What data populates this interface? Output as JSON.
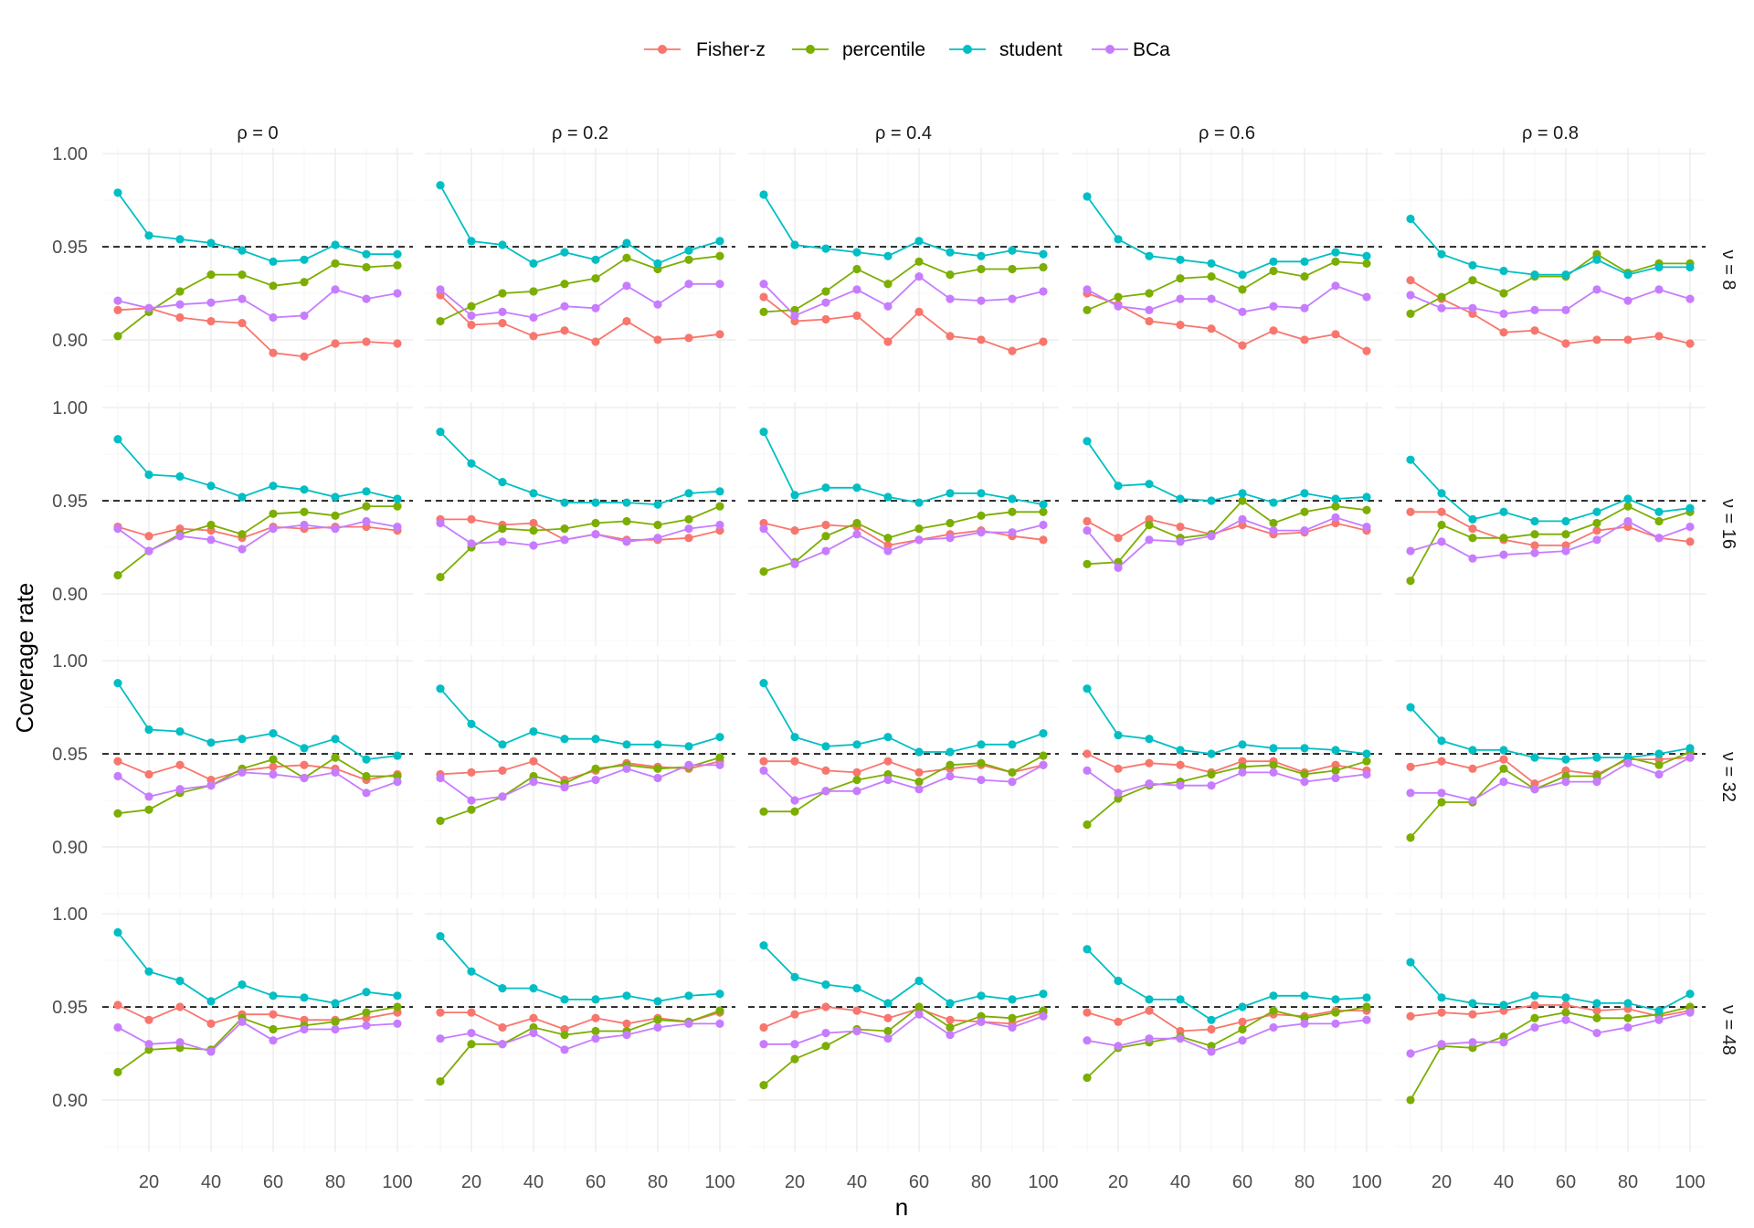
{
  "chart_data": {
    "type": "line",
    "xlabel": "n",
    "ylabel": "Coverage rate",
    "x": [
      10,
      20,
      30,
      40,
      50,
      60,
      70,
      80,
      90,
      100
    ],
    "xticks": [
      "20",
      "40",
      "60",
      "80",
      "100"
    ],
    "xtick_values": [
      20,
      40,
      60,
      80,
      100
    ],
    "xlim": [
      5,
      105
    ],
    "yticks": [
      "0.90",
      "0.95",
      "1.00"
    ],
    "ytick_values": [
      0.9,
      0.95,
      1.0
    ],
    "ylim": [
      0.872,
      1.003
    ],
    "reference_line": 0.95,
    "grid": true,
    "legend_position": "top",
    "legend": [
      {
        "name": "Fisher-z",
        "color": "#F8766D"
      },
      {
        "name": "percentile",
        "color": "#7CAE00"
      },
      {
        "name": "student",
        "color": "#00BFC4"
      },
      {
        "name": "BCa",
        "color": "#C77CFF"
      }
    ],
    "col_labels": [
      "ρ = 0",
      "ρ = 0.2",
      "ρ = 0.4",
      "ρ = 0.6",
      "ρ = 0.8"
    ],
    "row_labels": [
      "ν = 8",
      "ν = 16",
      "ν = 32",
      "ν = 48"
    ],
    "panels": [
      [
        {
          "Fisher-z": [
            0.916,
            0.917,
            0.912,
            0.91,
            0.909,
            0.893,
            0.891,
            0.898,
            0.899,
            0.898
          ],
          "percentile": [
            0.902,
            0.915,
            0.926,
            0.935,
            0.935,
            0.929,
            0.931,
            0.941,
            0.939,
            0.94
          ],
          "student": [
            0.979,
            0.956,
            0.954,
            0.952,
            0.948,
            0.942,
            0.943,
            0.951,
            0.946,
            0.946
          ],
          "BCa": [
            0.921,
            0.917,
            0.919,
            0.92,
            0.922,
            0.912,
            0.913,
            0.927,
            0.922,
            0.925
          ]
        },
        {
          "Fisher-z": [
            0.924,
            0.908,
            0.909,
            0.902,
            0.905,
            0.899,
            0.91,
            0.9,
            0.901,
            0.903
          ],
          "percentile": [
            0.91,
            0.918,
            0.925,
            0.926,
            0.93,
            0.933,
            0.944,
            0.938,
            0.943,
            0.945
          ],
          "student": [
            0.983,
            0.953,
            0.951,
            0.941,
            0.947,
            0.943,
            0.952,
            0.941,
            0.948,
            0.953
          ],
          "BCa": [
            0.927,
            0.913,
            0.915,
            0.912,
            0.918,
            0.917,
            0.929,
            0.919,
            0.93,
            0.93
          ]
        },
        {
          "Fisher-z": [
            0.923,
            0.91,
            0.911,
            0.913,
            0.899,
            0.915,
            0.902,
            0.9,
            0.894,
            0.899
          ],
          "percentile": [
            0.915,
            0.916,
            0.926,
            0.938,
            0.93,
            0.942,
            0.935,
            0.938,
            0.938,
            0.939
          ],
          "student": [
            0.978,
            0.951,
            0.949,
            0.947,
            0.945,
            0.953,
            0.947,
            0.945,
            0.948,
            0.946
          ],
          "BCa": [
            0.93,
            0.913,
            0.92,
            0.927,
            0.918,
            0.934,
            0.922,
            0.921,
            0.922,
            0.926
          ]
        },
        {
          "Fisher-z": [
            0.925,
            0.919,
            0.91,
            0.908,
            0.906,
            0.897,
            0.905,
            0.9,
            0.903,
            0.894
          ],
          "percentile": [
            0.916,
            0.923,
            0.925,
            0.933,
            0.934,
            0.927,
            0.937,
            0.934,
            0.942,
            0.941
          ],
          "student": [
            0.977,
            0.954,
            0.945,
            0.943,
            0.941,
            0.935,
            0.942,
            0.942,
            0.947,
            0.945
          ],
          "BCa": [
            0.927,
            0.918,
            0.916,
            0.922,
            0.922,
            0.915,
            0.918,
            0.917,
            0.929,
            0.923
          ]
        },
        {
          "Fisher-z": [
            0.932,
            0.922,
            0.914,
            0.904,
            0.905,
            0.898,
            0.9,
            0.9,
            0.902,
            0.898
          ],
          "percentile": [
            0.914,
            0.923,
            0.932,
            0.925,
            0.934,
            0.934,
            0.946,
            0.936,
            0.941,
            0.941
          ],
          "student": [
            0.965,
            0.946,
            0.94,
            0.937,
            0.935,
            0.935,
            0.943,
            0.935,
            0.939,
            0.939
          ],
          "BCa": [
            0.924,
            0.917,
            0.917,
            0.914,
            0.916,
            0.916,
            0.927,
            0.921,
            0.927,
            0.922
          ]
        }
      ],
      [
        {
          "Fisher-z": [
            0.936,
            0.931,
            0.935,
            0.934,
            0.93,
            0.936,
            0.935,
            0.936,
            0.936,
            0.934
          ],
          "percentile": [
            0.91,
            0.923,
            0.932,
            0.937,
            0.932,
            0.943,
            0.944,
            0.942,
            0.947,
            0.947
          ],
          "student": [
            0.983,
            0.964,
            0.963,
            0.958,
            0.952,
            0.958,
            0.956,
            0.952,
            0.955,
            0.951
          ],
          "BCa": [
            0.935,
            0.923,
            0.931,
            0.929,
            0.924,
            0.935,
            0.937,
            0.935,
            0.939,
            0.936
          ]
        },
        {
          "Fisher-z": [
            0.94,
            0.94,
            0.937,
            0.938,
            0.929,
            0.932,
            0.929,
            0.929,
            0.93,
            0.934
          ],
          "percentile": [
            0.909,
            0.925,
            0.935,
            0.934,
            0.935,
            0.938,
            0.939,
            0.937,
            0.94,
            0.947
          ],
          "student": [
            0.987,
            0.97,
            0.96,
            0.954,
            0.949,
            0.949,
            0.949,
            0.948,
            0.954,
            0.955
          ],
          "BCa": [
            0.938,
            0.927,
            0.928,
            0.926,
            0.929,
            0.932,
            0.928,
            0.93,
            0.935,
            0.937
          ]
        },
        {
          "Fisher-z": [
            0.938,
            0.934,
            0.937,
            0.936,
            0.926,
            0.929,
            0.932,
            0.934,
            0.931,
            0.929
          ],
          "percentile": [
            0.912,
            0.917,
            0.931,
            0.938,
            0.93,
            0.935,
            0.938,
            0.942,
            0.944,
            0.944
          ],
          "student": [
            0.987,
            0.953,
            0.957,
            0.957,
            0.952,
            0.949,
            0.954,
            0.954,
            0.951,
            0.948
          ],
          "BCa": [
            0.935,
            0.916,
            0.923,
            0.932,
            0.923,
            0.929,
            0.93,
            0.933,
            0.933,
            0.937
          ]
        },
        {
          "Fisher-z": [
            0.939,
            0.93,
            0.94,
            0.936,
            0.932,
            0.937,
            0.932,
            0.933,
            0.938,
            0.934
          ],
          "percentile": [
            0.916,
            0.917,
            0.937,
            0.93,
            0.932,
            0.95,
            0.938,
            0.944,
            0.947,
            0.945
          ],
          "student": [
            0.982,
            0.958,
            0.959,
            0.951,
            0.95,
            0.954,
            0.949,
            0.954,
            0.951,
            0.952
          ],
          "BCa": [
            0.934,
            0.914,
            0.929,
            0.928,
            0.931,
            0.94,
            0.934,
            0.934,
            0.941,
            0.936
          ]
        },
        {
          "Fisher-z": [
            0.944,
            0.944,
            0.935,
            0.929,
            0.926,
            0.926,
            0.934,
            0.936,
            0.93,
            0.928
          ],
          "percentile": [
            0.907,
            0.937,
            0.93,
            0.93,
            0.932,
            0.932,
            0.938,
            0.947,
            0.939,
            0.944
          ],
          "student": [
            0.972,
            0.954,
            0.94,
            0.944,
            0.939,
            0.939,
            0.944,
            0.951,
            0.944,
            0.946
          ],
          "BCa": [
            0.923,
            0.928,
            0.919,
            0.921,
            0.922,
            0.923,
            0.929,
            0.939,
            0.93,
            0.936
          ]
        }
      ],
      [
        {
          "Fisher-z": [
            0.946,
            0.939,
            0.944,
            0.936,
            0.941,
            0.943,
            0.944,
            0.942,
            0.936,
            0.939
          ],
          "percentile": [
            0.918,
            0.92,
            0.929,
            0.933,
            0.942,
            0.947,
            0.937,
            0.948,
            0.938,
            0.938
          ],
          "student": [
            0.988,
            0.963,
            0.962,
            0.956,
            0.958,
            0.961,
            0.953,
            0.958,
            0.947,
            0.949
          ],
          "BCa": [
            0.938,
            0.927,
            0.931,
            0.933,
            0.94,
            0.939,
            0.937,
            0.94,
            0.929,
            0.935
          ]
        },
        {
          "Fisher-z": [
            0.939,
            0.94,
            0.941,
            0.946,
            0.936,
            0.941,
            0.945,
            0.943,
            0.942,
            0.946
          ],
          "percentile": [
            0.914,
            0.92,
            0.927,
            0.938,
            0.934,
            0.942,
            0.944,
            0.942,
            0.943,
            0.948
          ],
          "student": [
            0.985,
            0.966,
            0.955,
            0.962,
            0.958,
            0.958,
            0.955,
            0.955,
            0.954,
            0.959
          ],
          "BCa": [
            0.937,
            0.925,
            0.927,
            0.935,
            0.932,
            0.936,
            0.942,
            0.937,
            0.944,
            0.944
          ]
        },
        {
          "Fisher-z": [
            0.946,
            0.946,
            0.941,
            0.94,
            0.946,
            0.94,
            0.942,
            0.944,
            0.94,
            0.944
          ],
          "percentile": [
            0.919,
            0.919,
            0.93,
            0.936,
            0.939,
            0.935,
            0.944,
            0.945,
            0.94,
            0.949
          ],
          "student": [
            0.988,
            0.959,
            0.954,
            0.955,
            0.959,
            0.951,
            0.951,
            0.955,
            0.955,
            0.961
          ],
          "BCa": [
            0.941,
            0.925,
            0.93,
            0.93,
            0.936,
            0.931,
            0.938,
            0.936,
            0.935,
            0.944
          ]
        },
        {
          "Fisher-z": [
            0.95,
            0.942,
            0.945,
            0.944,
            0.94,
            0.946,
            0.946,
            0.94,
            0.944,
            0.941
          ],
          "percentile": [
            0.912,
            0.926,
            0.933,
            0.935,
            0.939,
            0.943,
            0.944,
            0.939,
            0.941,
            0.946
          ],
          "student": [
            0.985,
            0.96,
            0.958,
            0.952,
            0.95,
            0.955,
            0.953,
            0.953,
            0.952,
            0.95
          ],
          "BCa": [
            0.941,
            0.929,
            0.934,
            0.933,
            0.933,
            0.94,
            0.94,
            0.935,
            0.937,
            0.939
          ]
        },
        {
          "Fisher-z": [
            0.943,
            0.946,
            0.942,
            0.947,
            0.934,
            0.941,
            0.939,
            0.947,
            0.947,
            0.948
          ],
          "percentile": [
            0.905,
            0.924,
            0.924,
            0.942,
            0.931,
            0.938,
            0.938,
            0.948,
            0.944,
            0.951
          ],
          "student": [
            0.975,
            0.957,
            0.952,
            0.952,
            0.948,
            0.947,
            0.948,
            0.948,
            0.95,
            0.953
          ],
          "BCa": [
            0.929,
            0.929,
            0.925,
            0.935,
            0.931,
            0.935,
            0.935,
            0.945,
            0.939,
            0.948
          ]
        }
      ],
      [
        {
          "Fisher-z": [
            0.951,
            0.943,
            0.95,
            0.941,
            0.946,
            0.946,
            0.943,
            0.943,
            0.944,
            0.947
          ],
          "percentile": [
            0.915,
            0.927,
            0.928,
            0.927,
            0.944,
            0.938,
            0.94,
            0.942,
            0.947,
            0.95
          ],
          "student": [
            0.99,
            0.969,
            0.964,
            0.953,
            0.962,
            0.956,
            0.955,
            0.952,
            0.958,
            0.956
          ],
          "BCa": [
            0.939,
            0.93,
            0.931,
            0.926,
            0.942,
            0.932,
            0.938,
            0.938,
            0.94,
            0.941
          ]
        },
        {
          "Fisher-z": [
            0.947,
            0.947,
            0.939,
            0.944,
            0.938,
            0.944,
            0.941,
            0.944,
            0.942,
            0.947
          ],
          "percentile": [
            0.91,
            0.93,
            0.93,
            0.939,
            0.935,
            0.937,
            0.937,
            0.943,
            0.942,
            0.948
          ],
          "student": [
            0.988,
            0.969,
            0.96,
            0.96,
            0.954,
            0.954,
            0.956,
            0.953,
            0.956,
            0.957
          ],
          "BCa": [
            0.933,
            0.936,
            0.93,
            0.936,
            0.927,
            0.933,
            0.935,
            0.939,
            0.941,
            0.941
          ]
        },
        {
          "Fisher-z": [
            0.939,
            0.946,
            0.95,
            0.948,
            0.944,
            0.949,
            0.943,
            0.942,
            0.941,
            0.947
          ],
          "percentile": [
            0.908,
            0.922,
            0.929,
            0.938,
            0.937,
            0.95,
            0.939,
            0.945,
            0.944,
            0.948
          ],
          "student": [
            0.983,
            0.966,
            0.962,
            0.96,
            0.952,
            0.964,
            0.952,
            0.956,
            0.954,
            0.957
          ],
          "BCa": [
            0.93,
            0.93,
            0.936,
            0.937,
            0.933,
            0.946,
            0.935,
            0.942,
            0.939,
            0.945
          ]
        },
        {
          "Fisher-z": [
            0.947,
            0.942,
            0.948,
            0.937,
            0.938,
            0.942,
            0.946,
            0.945,
            0.948,
            0.948
          ],
          "percentile": [
            0.912,
            0.928,
            0.931,
            0.934,
            0.929,
            0.938,
            0.948,
            0.944,
            0.947,
            0.95
          ],
          "student": [
            0.981,
            0.964,
            0.954,
            0.954,
            0.943,
            0.95,
            0.956,
            0.956,
            0.954,
            0.955
          ],
          "BCa": [
            0.932,
            0.929,
            0.933,
            0.933,
            0.926,
            0.932,
            0.939,
            0.941,
            0.941,
            0.943
          ]
        },
        {
          "Fisher-z": [
            0.945,
            0.947,
            0.946,
            0.948,
            0.951,
            0.951,
            0.948,
            0.949,
            0.945,
            0.948
          ],
          "percentile": [
            0.9,
            0.929,
            0.928,
            0.934,
            0.944,
            0.947,
            0.944,
            0.944,
            0.946,
            0.95
          ],
          "student": [
            0.974,
            0.955,
            0.952,
            0.951,
            0.956,
            0.955,
            0.952,
            0.952,
            0.948,
            0.957
          ],
          "BCa": [
            0.925,
            0.93,
            0.931,
            0.931,
            0.939,
            0.943,
            0.936,
            0.939,
            0.943,
            0.947
          ]
        }
      ]
    ]
  }
}
